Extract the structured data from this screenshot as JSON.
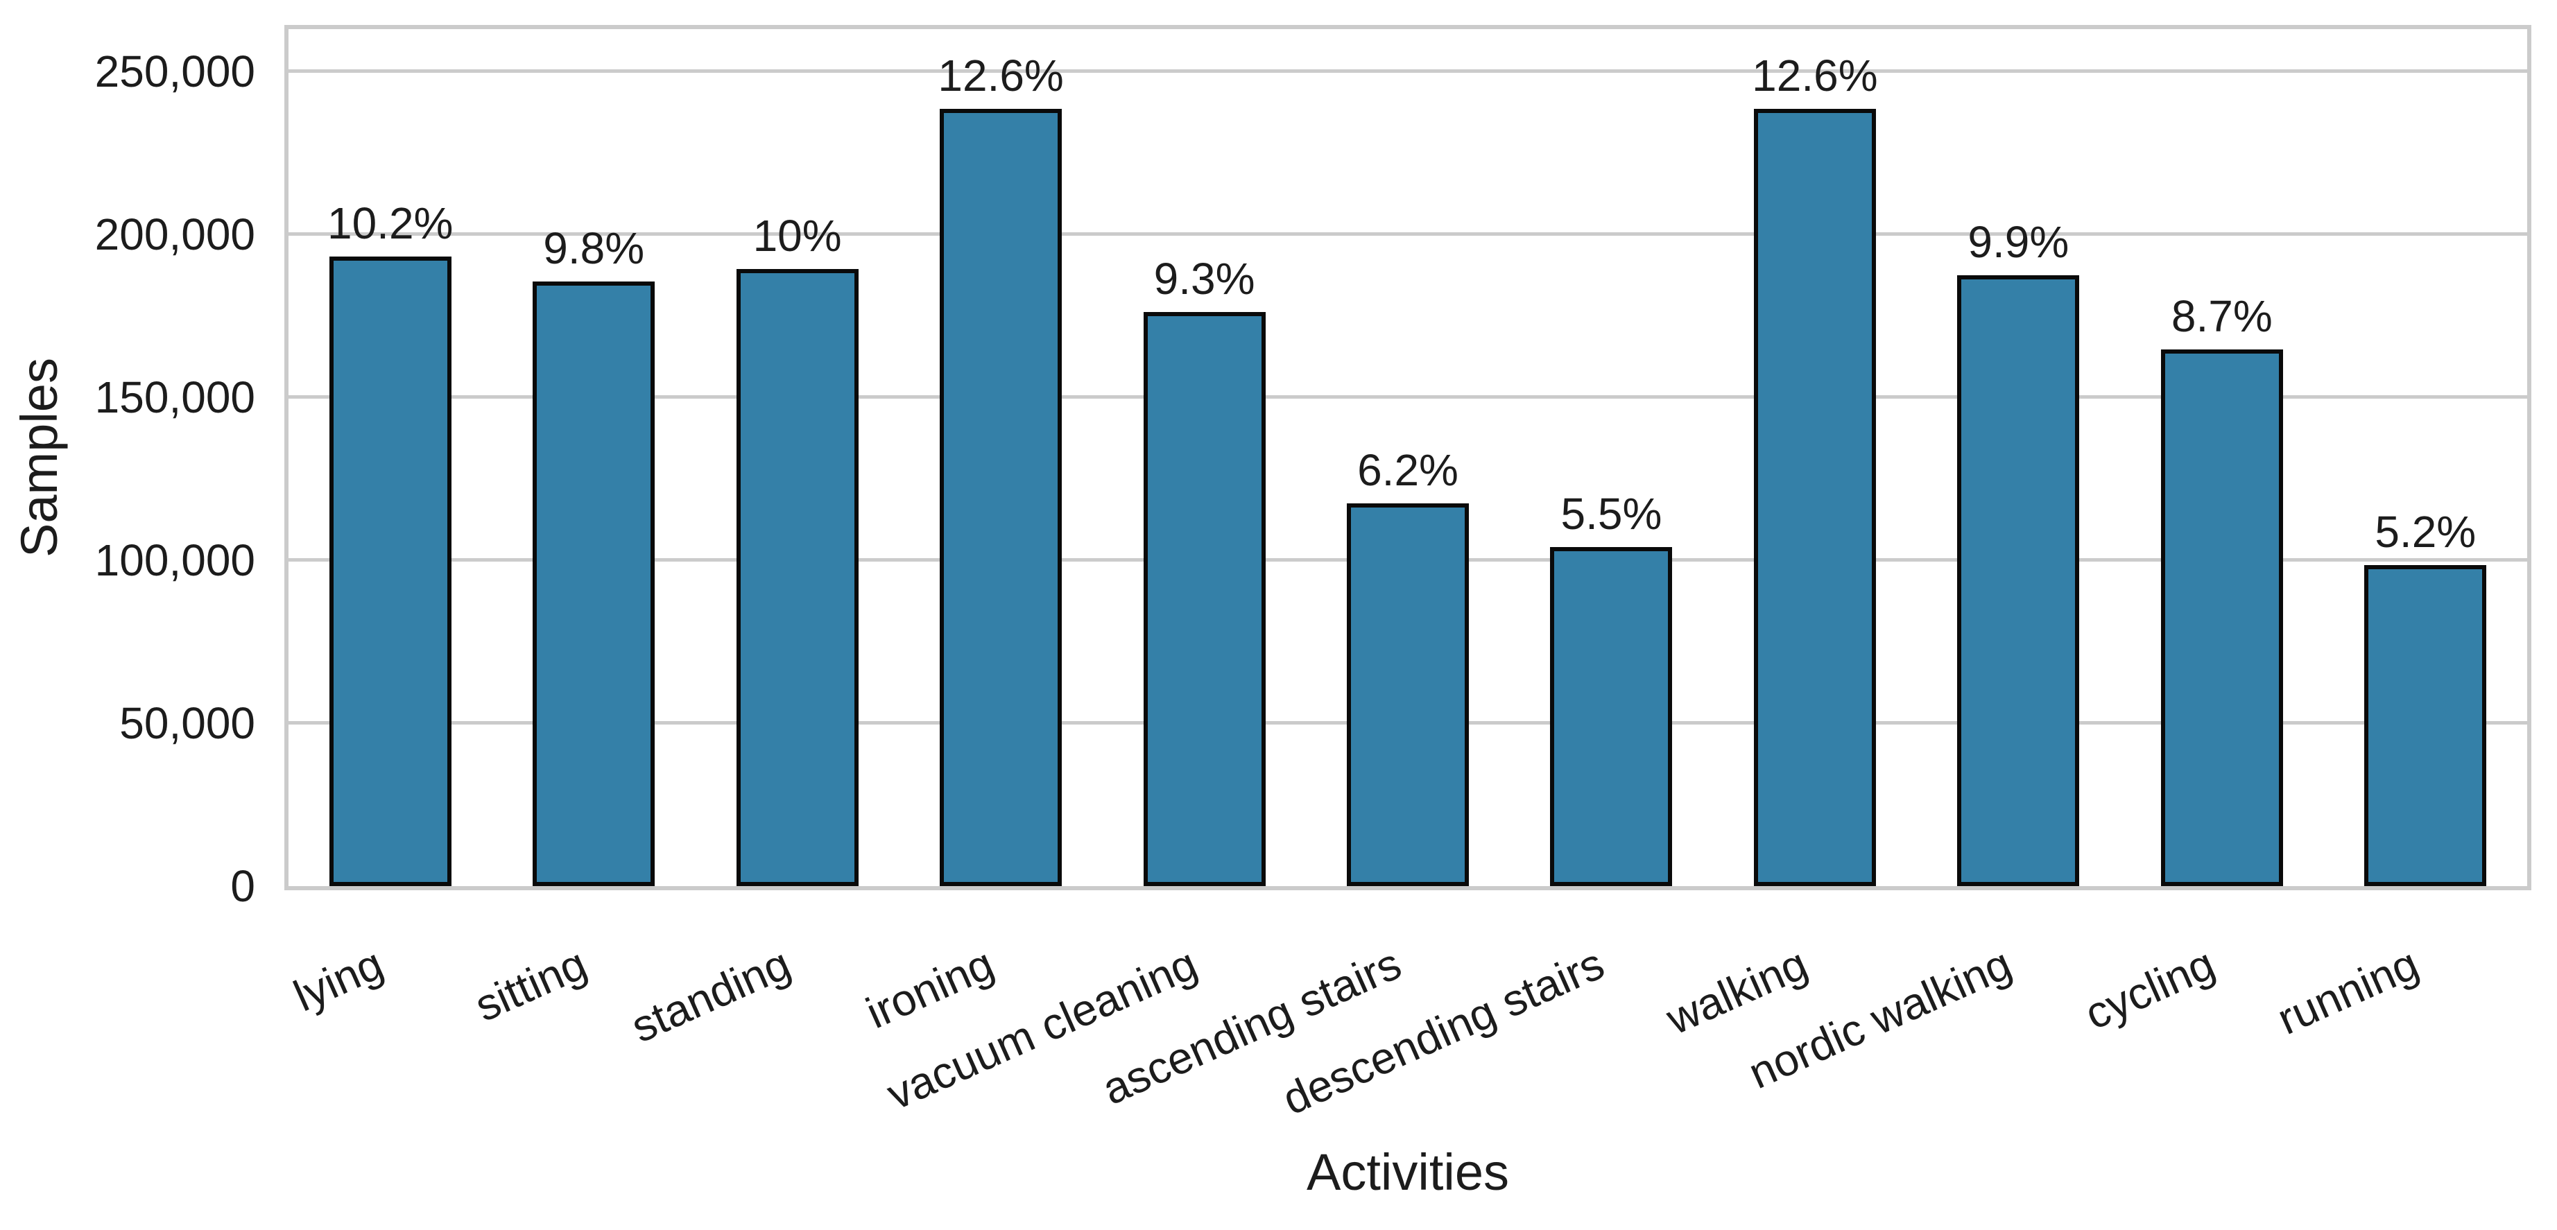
{
  "chart_data": {
    "type": "bar",
    "title": "",
    "xlabel": "Activities",
    "ylabel": "Samples",
    "categories": [
      "lying",
      "sitting",
      "standing",
      "ironing",
      "vacuum cleaning",
      "ascending stairs",
      "descending stairs",
      "walking",
      "nordic walking",
      "cycling",
      "running"
    ],
    "values": [
      193100,
      185500,
      189300,
      238500,
      176100,
      117400,
      104100,
      238500,
      187400,
      164700,
      98500
    ],
    "bar_labels": [
      "10.2%",
      "9.8%",
      "10%",
      "12.6%",
      "9.3%",
      "6.2%",
      "5.5%",
      "12.6%",
      "9.9%",
      "8.7%",
      "5.2%"
    ],
    "y_ticks": {
      "values": [
        0,
        50000,
        100000,
        150000,
        200000,
        250000
      ],
      "labels": [
        "0",
        "50,000",
        "100,000",
        "150,000",
        "200,000",
        "250,000"
      ]
    },
    "ylim": [
      0,
      262900
    ],
    "grid": "horizontal",
    "legend": "none",
    "x_tick_rotation_deg": 24,
    "bar_width_fraction": 0.6,
    "colors": {
      "bar_fill": "#3480A8",
      "bar_edge": "#0a0a0a",
      "grid_and_spines": "#cbcbcb",
      "text": "#1c1c1c",
      "background": "#ffffff"
    }
  }
}
